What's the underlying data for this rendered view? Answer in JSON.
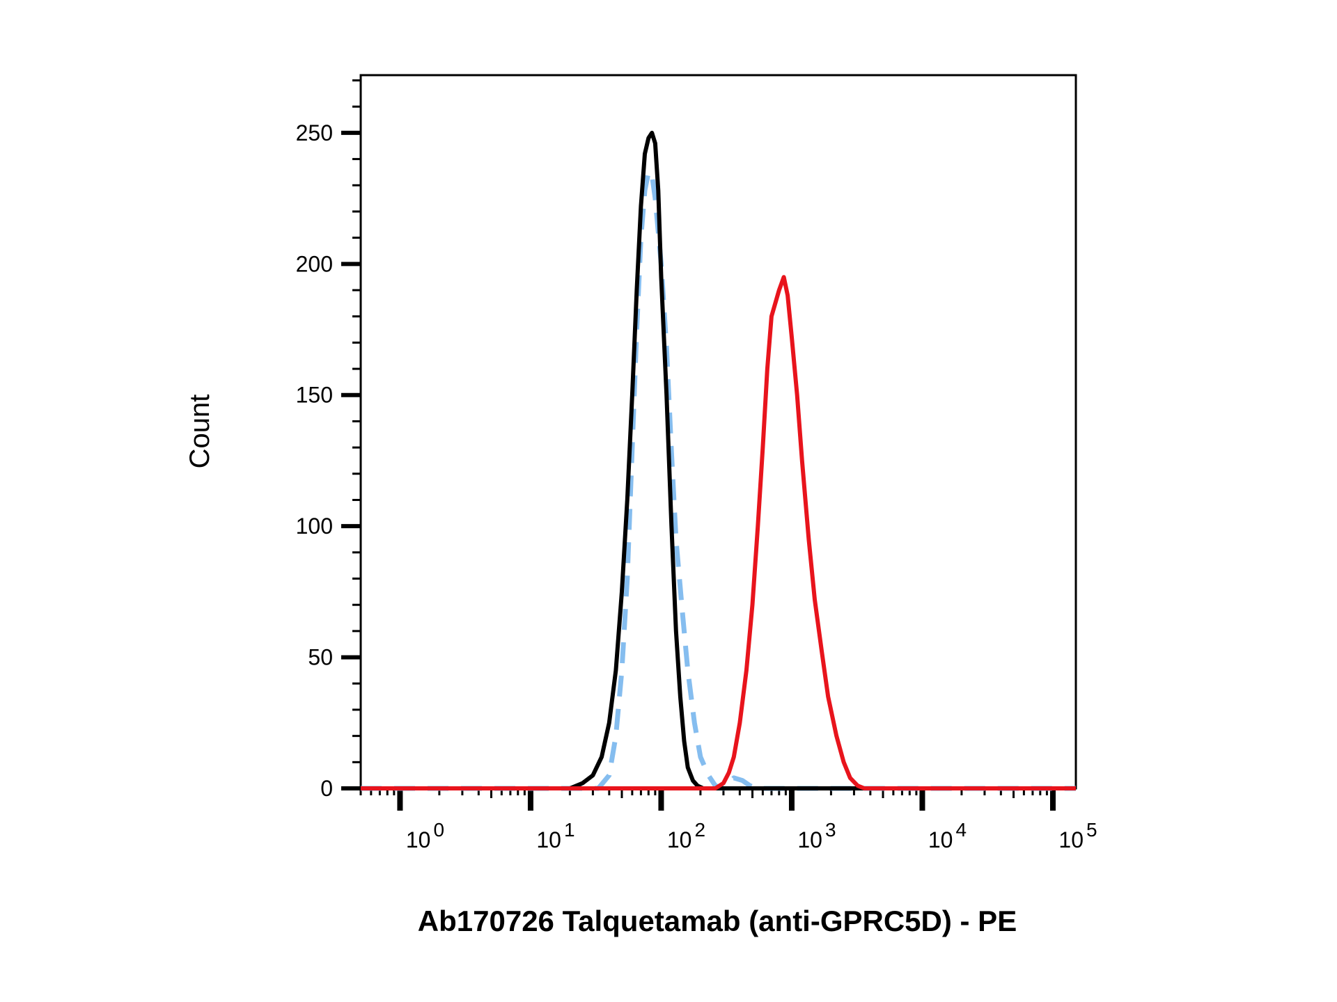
{
  "chart_data": {
    "type": "line",
    "title": "",
    "xlabel": "Ab170726 Talquetamab (anti-GPRC5D) - PE",
    "ylabel": "Count",
    "xscale": "log",
    "xlim": [
      0.5,
      150000
    ],
    "ylim": [
      0,
      272
    ],
    "grid": false,
    "legend": "none",
    "y_ticks": [
      0,
      50,
      100,
      150,
      200,
      250
    ],
    "y_tick_labels": [
      "0",
      "50",
      "100",
      "150",
      "200",
      "250"
    ],
    "x_ticks": [
      1,
      10,
      100,
      1000,
      10000,
      100000
    ],
    "x_tick_base": [
      "10",
      "10",
      "10",
      "10",
      "10",
      "10"
    ],
    "x_tick_exp": [
      "0",
      "1",
      "2",
      "3",
      "4",
      "5"
    ],
    "series": [
      {
        "color": "#000000",
        "dash": "solid",
        "points": [
          [
            0.5,
            0
          ],
          [
            20,
            0
          ],
          [
            25,
            2
          ],
          [
            30,
            5
          ],
          [
            35,
            12
          ],
          [
            40,
            25
          ],
          [
            45,
            45
          ],
          [
            50,
            75
          ],
          [
            55,
            110
          ],
          [
            60,
            150
          ],
          [
            65,
            190
          ],
          [
            70,
            222
          ],
          [
            75,
            242
          ],
          [
            80,
            248
          ],
          [
            85,
            250
          ],
          [
            90,
            246
          ],
          [
            95,
            228
          ],
          [
            100,
            195
          ],
          [
            110,
            150
          ],
          [
            120,
            100
          ],
          [
            130,
            60
          ],
          [
            140,
            35
          ],
          [
            150,
            18
          ],
          [
            160,
            8
          ],
          [
            175,
            3
          ],
          [
            190,
            1
          ],
          [
            210,
            0
          ],
          [
            150000,
            0
          ]
        ]
      },
      {
        "color": "#85BDEF",
        "dash": "dashed",
        "points": [
          [
            0.5,
            0
          ],
          [
            33,
            0
          ],
          [
            40,
            5
          ],
          [
            45,
            20
          ],
          [
            50,
            45
          ],
          [
            55,
            80
          ],
          [
            60,
            130
          ],
          [
            65,
            175
          ],
          [
            70,
            210
          ],
          [
            75,
            228
          ],
          [
            80,
            235
          ],
          [
            85,
            234
          ],
          [
            90,
            225
          ],
          [
            100,
            200
          ],
          [
            110,
            168
          ],
          [
            120,
            128
          ],
          [
            130,
            95
          ],
          [
            145,
            68
          ],
          [
            160,
            45
          ],
          [
            180,
            25
          ],
          [
            200,
            12
          ],
          [
            230,
            5
          ],
          [
            260,
            1
          ],
          [
            300,
            0
          ],
          [
            360,
            4
          ],
          [
            420,
            3
          ],
          [
            480,
            1
          ],
          [
            540,
            0
          ],
          [
            150000,
            0
          ]
        ]
      },
      {
        "color": "#E8141C",
        "dash": "solid",
        "points": [
          [
            0.5,
            0
          ],
          [
            260,
            0
          ],
          [
            300,
            2
          ],
          [
            330,
            6
          ],
          [
            360,
            12
          ],
          [
            400,
            25
          ],
          [
            450,
            45
          ],
          [
            500,
            70
          ],
          [
            550,
            100
          ],
          [
            600,
            130
          ],
          [
            650,
            160
          ],
          [
            700,
            180
          ],
          [
            800,
            190
          ],
          [
            870,
            195
          ],
          [
            930,
            188
          ],
          [
            1000,
            172
          ],
          [
            1100,
            150
          ],
          [
            1200,
            125
          ],
          [
            1350,
            95
          ],
          [
            1500,
            72
          ],
          [
            1700,
            52
          ],
          [
            1900,
            35
          ],
          [
            2200,
            20
          ],
          [
            2500,
            10
          ],
          [
            2800,
            4
          ],
          [
            3200,
            1
          ],
          [
            3600,
            0
          ],
          [
            150000,
            0
          ]
        ]
      }
    ]
  }
}
